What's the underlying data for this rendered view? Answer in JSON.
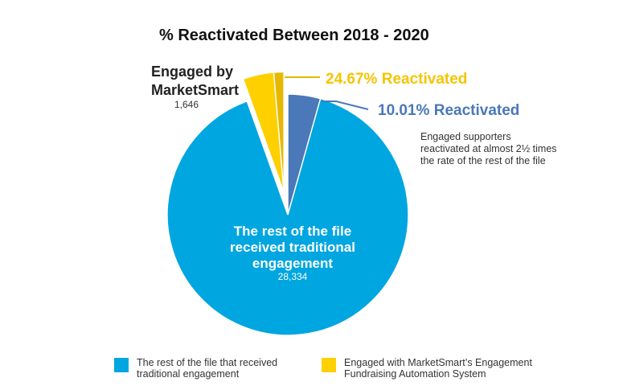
{
  "chart_data": {
    "type": "pie",
    "title": "% Reactivated Between 2018 - 2020",
    "slices": [
      {
        "name": "The rest of the file received traditional engagement",
        "value": 28334,
        "color": "#00a6e0"
      },
      {
        "name": "Engaged by MarketSmart",
        "value": 1646,
        "color": "#fed000"
      }
    ],
    "reactivated_subslices": [
      {
        "parent": "The rest of the file received traditional engagement",
        "label": "10.01% Reactivated",
        "fraction_of_parent": 0.1001,
        "color": "#4a78b8"
      },
      {
        "parent": "Engaged by MarketSmart",
        "label": "24.67% Reactivated",
        "fraction_of_parent": 0.2467,
        "color": "#e6b800"
      }
    ],
    "labels": {
      "engaged_line1": "Engaged by",
      "engaged_line2": "MarketSmart",
      "engaged_count": "1,646",
      "rest_line1": "The rest of the file",
      "rest_line2": "received traditional",
      "rest_line3": "engagement",
      "rest_count": "28,334",
      "engaged_pct": "24.67% Reactivated",
      "rest_pct": "10.01% Reactivated"
    },
    "note": [
      "Engaged supporters",
      "reactivated at almost 2½ times",
      "the rate of the rest of the file"
    ],
    "legend": [
      {
        "line1": "The rest of the file that received",
        "line2": "traditional engagement",
        "color": "#00a6e0"
      },
      {
        "line1": "Engaged with MarketSmart’s Engagement",
        "line2": "Fundraising Automation System",
        "color": "#fed000"
      }
    ]
  }
}
